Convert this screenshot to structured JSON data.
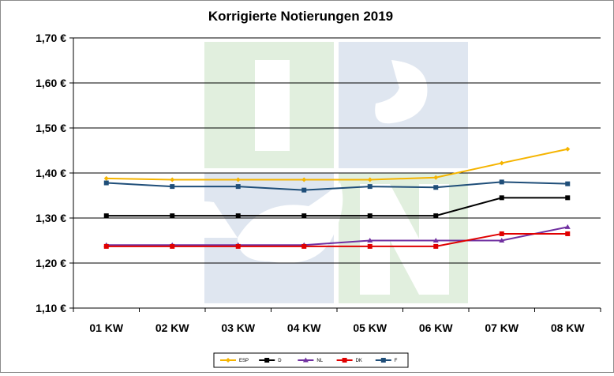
{
  "chart_data": {
    "type": "line",
    "title": "Korrigierte Notierungen 2019",
    "xlabel": "",
    "ylabel": "",
    "categories": [
      "01 KW",
      "02 KW",
      "03 KW",
      "04 KW",
      "05 KW",
      "06 KW",
      "07 KW",
      "08 KW"
    ],
    "ylim": [
      1.1,
      1.7
    ],
    "yticks": [
      "1,10 €",
      "1,20 €",
      "1,30 €",
      "1,40 €",
      "1,50 €",
      "1,60 €",
      "1,70 €"
    ],
    "grid": true,
    "legend_position": "bottom",
    "watermark_text": "ISN",
    "series": [
      {
        "name": "ESP",
        "color": "#f5b400",
        "marker": "diamond",
        "values": [
          1.388,
          1.385,
          1.385,
          1.385,
          1.385,
          1.39,
          1.422,
          1.453
        ]
      },
      {
        "name": "D",
        "color": "#000000",
        "marker": "square",
        "values": [
          1.305,
          1.305,
          1.305,
          1.305,
          1.305,
          1.305,
          1.345,
          1.345
        ]
      },
      {
        "name": "NL",
        "color": "#7030a0",
        "marker": "triangle",
        "values": [
          1.24,
          1.24,
          1.24,
          1.24,
          1.25,
          1.25,
          1.25,
          1.28
        ]
      },
      {
        "name": "DK",
        "color": "#e00000",
        "marker": "square",
        "values": [
          1.237,
          1.237,
          1.237,
          1.237,
          1.237,
          1.237,
          1.265,
          1.265
        ]
      },
      {
        "name": "F",
        "color": "#1f4e79",
        "marker": "square",
        "values": [
          1.378,
          1.37,
          1.37,
          1.362,
          1.37,
          1.368,
          1.38,
          1.376
        ]
      }
    ]
  }
}
